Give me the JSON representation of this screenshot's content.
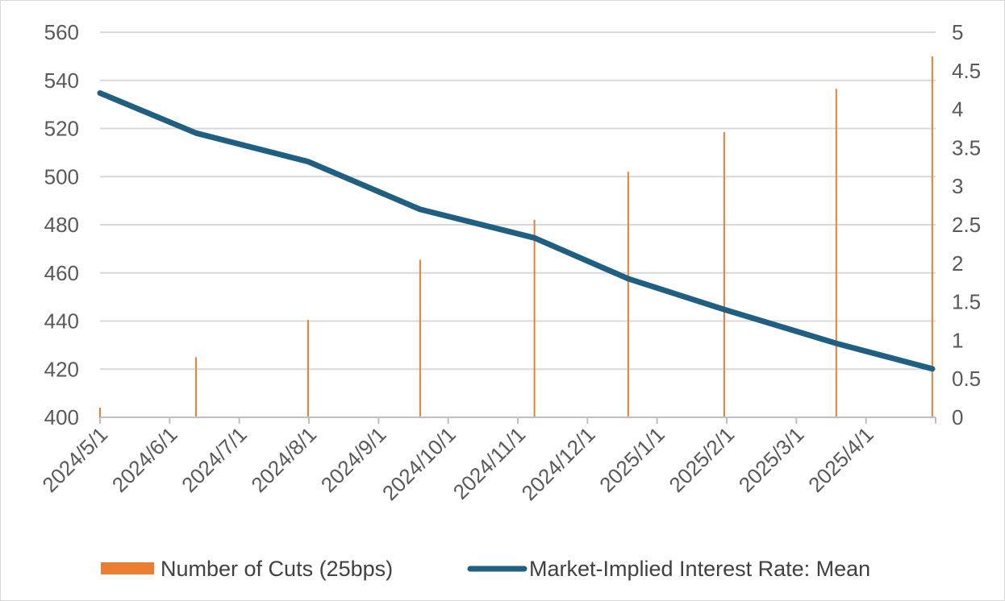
{
  "chart_data": {
    "type": "bar+line",
    "x_categories": [
      "2024/5/1",
      "2024/6/1",
      "2024/7/1",
      "2024/8/1",
      "2024/9/1",
      "2024/10/1",
      "2024/11/1",
      "2024/12/1",
      "2025/1/1",
      "2025/2/1",
      "2025/3/1",
      "2025/4/1"
    ],
    "left_axis": {
      "ylim": [
        400,
        560
      ],
      "ticks": [
        "400",
        "420",
        "440",
        "460",
        "480",
        "500",
        "520",
        "540",
        "560"
      ]
    },
    "right_axis": {
      "ylim": [
        0,
        5
      ],
      "ticks": [
        "0",
        "0.5",
        "1",
        "1.5",
        "2",
        "2.5",
        "3",
        "3.5",
        "4",
        "4.5",
        "5"
      ]
    },
    "grid": true,
    "legend_position": "bottom",
    "dates": [
      "2024/5/1",
      "2024/6/12",
      "2024/7/31",
      "2024/9/18",
      "2024/11/7",
      "2024/12/18",
      "2025/1/29",
      "2025/3/19",
      "2025/4/30"
    ],
    "series": [
      {
        "name": "Number of Cuts (25bps)",
        "type": "bar",
        "axis": "left",
        "color": "#ED7D31",
        "values": [
          404,
          425,
          440.5,
          465.5,
          482,
          502,
          518.5,
          536.5,
          550
        ]
      },
      {
        "name": "Market-Implied Interest Rate: Mean",
        "type": "line",
        "axis": "right",
        "color": "#1F5F82",
        "values": [
          4.21,
          3.69,
          3.32,
          2.7,
          2.33,
          1.8,
          1.4,
          0.96,
          0.63
        ]
      }
    ]
  }
}
